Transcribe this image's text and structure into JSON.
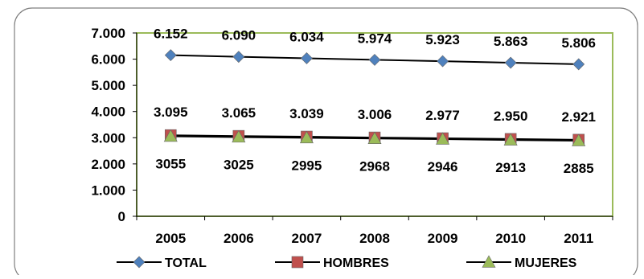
{
  "chart_data": {
    "type": "line",
    "x": [
      "2005",
      "2006",
      "2007",
      "2008",
      "2009",
      "2010",
      "2011"
    ],
    "ylim": [
      0,
      7000
    ],
    "yticks": [
      0,
      1000,
      2000,
      3000,
      4000,
      5000,
      6000,
      7000
    ],
    "ytick_labels": [
      "0",
      "1.000",
      "2.000",
      "3.000",
      "4.000",
      "5.000",
      "6.000",
      "7.000"
    ],
    "grid": false,
    "legend_position": "bottom",
    "series": [
      {
        "name": "TOTAL",
        "marker": "diamond",
        "color": "#4F81BD",
        "values": [
          6152,
          6090,
          6034,
          5974,
          5923,
          5863,
          5806
        ],
        "labels": [
          "6.152",
          "6.090",
          "6.034",
          "5.974",
          "5.923",
          "5.863",
          "5.806"
        ]
      },
      {
        "name": "HOMBRES",
        "marker": "square",
        "color": "#C0504D",
        "values": [
          3095,
          3065,
          3039,
          3006,
          2977,
          2950,
          2921
        ],
        "labels": [
          "3.095",
          "3.065",
          "3.039",
          "3.006",
          "2.977",
          "2.950",
          "2.921"
        ]
      },
      {
        "name": "MUJERES",
        "marker": "triangle",
        "color": "#9BBB59",
        "values": [
          3055,
          3025,
          2995,
          2968,
          2946,
          2913,
          2885
        ],
        "labels": [
          "3055",
          "3025",
          "2995",
          "2968",
          "2946",
          "2913",
          "2885"
        ]
      }
    ]
  }
}
